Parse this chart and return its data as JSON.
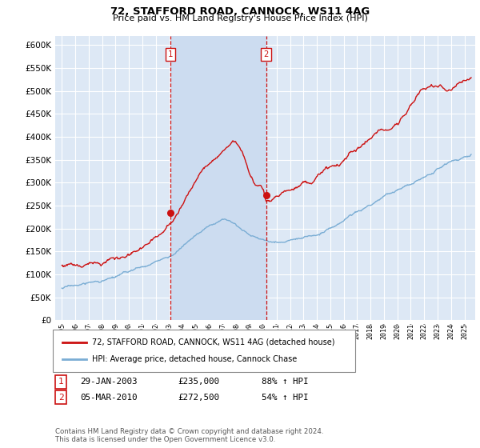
{
  "title": "72, STAFFORD ROAD, CANNOCK, WS11 4AG",
  "subtitle": "Price paid vs. HM Land Registry's House Price Index (HPI)",
  "red_label": "72, STAFFORD ROAD, CANNOCK, WS11 4AG (detached house)",
  "blue_label": "HPI: Average price, detached house, Cannock Chase",
  "annotation1_label": "1",
  "annotation1_date": "29-JAN-2003",
  "annotation1_price": "£235,000",
  "annotation1_hpi": "88% ↑ HPI",
  "annotation1_year": 2003.08,
  "annotation1_value": 235000,
  "annotation2_label": "2",
  "annotation2_date": "05-MAR-2010",
  "annotation2_price": "£272,500",
  "annotation2_hpi": "54% ↑ HPI",
  "annotation2_year": 2010.21,
  "annotation2_value": 272500,
  "ylim_min": 0,
  "ylim_max": 620000,
  "xlim_min": 1994.5,
  "xlim_max": 2025.8,
  "background_color": "#ffffff",
  "plot_bg_color": "#dde8f5",
  "highlight_color": "#ccdcf0",
  "grid_color": "#ffffff",
  "footnote": "Contains HM Land Registry data © Crown copyright and database right 2024.\nThis data is licensed under the Open Government Licence v3.0."
}
